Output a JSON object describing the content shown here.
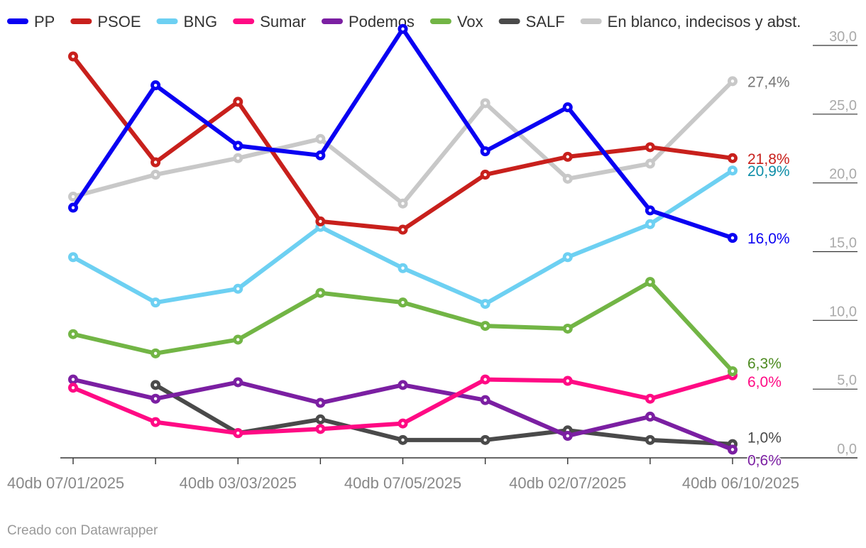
{
  "chart_data": {
    "type": "line",
    "legend_position": "top-left",
    "x_count": 9,
    "x_tick_labels": [
      "40db 07/01/2025",
      "40db 03/03/2025",
      "40db 07/05/2025",
      "40db 02/07/2025",
      "40db 06/10/2025"
    ],
    "x_tick_label_indices": [
      0,
      2,
      4,
      6,
      8
    ],
    "ylim": [
      0,
      30
    ],
    "y_ticks": [
      0,
      5,
      10,
      15,
      20,
      25,
      30
    ],
    "y_tick_labels": [
      "0,0",
      "5,0",
      "10,0",
      "15,0",
      "20,0",
      "25,0",
      "30,0"
    ],
    "series": [
      {
        "name": "En blanco, indecisos y abst.",
        "color": "#c8c8c8",
        "label_color": "#777777",
        "values": [
          19.0,
          20.6,
          21.8,
          23.2,
          18.5,
          25.8,
          20.3,
          21.4,
          27.4
        ],
        "end_label": "27,4%"
      },
      {
        "name": "SALF",
        "color": "#4a4a4a",
        "label_color": "#4a4a4a",
        "values": [
          null,
          5.3,
          1.8,
          2.8,
          1.3,
          1.3,
          2.0,
          1.3,
          1.0
        ],
        "end_label": "1,0%"
      },
      {
        "name": "Podemos",
        "color": "#7b1fa2",
        "label_color": "#7b1fa2",
        "values": [
          5.7,
          4.3,
          5.5,
          4.0,
          5.3,
          4.2,
          1.6,
          3.0,
          0.6
        ],
        "end_label": "0,6%"
      },
      {
        "name": "Sumar",
        "color": "#ff0a84",
        "label_color": "#ff0a84",
        "values": [
          5.1,
          2.6,
          1.8,
          2.1,
          2.5,
          5.7,
          5.6,
          4.3,
          6.0
        ],
        "end_label": "6,0%"
      },
      {
        "name": "Vox",
        "color": "#72b545",
        "label_color": "#4c8a1f",
        "values": [
          9.0,
          7.6,
          8.6,
          12.0,
          11.3,
          9.6,
          9.4,
          12.8,
          6.3
        ],
        "end_label": "6,3%"
      },
      {
        "name": "BNG",
        "color": "#6dd0f2",
        "label_color": "#0e8ea8",
        "values": [
          14.6,
          11.3,
          12.3,
          16.8,
          13.8,
          11.2,
          14.6,
          17.0,
          20.9
        ],
        "end_label": "20,9%"
      },
      {
        "name": "PSOE",
        "color": "#c8201c",
        "label_color": "#c8201c",
        "values": [
          29.2,
          21.5,
          25.9,
          17.2,
          16.6,
          20.6,
          21.9,
          22.6,
          21.8
        ],
        "end_label": "21,8%"
      },
      {
        "name": "PP",
        "color": "#0a00f2",
        "label_color": "#0a00f2",
        "values": [
          18.2,
          27.1,
          22.7,
          22.0,
          31.2,
          22.3,
          25.5,
          18.0,
          16.0
        ],
        "end_label": "16,0%"
      }
    ],
    "legend_order": [
      "PP",
      "PSOE",
      "BNG",
      "Sumar",
      "Podemos",
      "Vox",
      "SALF",
      "En blanco, indecisos y abst."
    ]
  },
  "footer": {
    "credit": "Creado con Datawrapper"
  }
}
